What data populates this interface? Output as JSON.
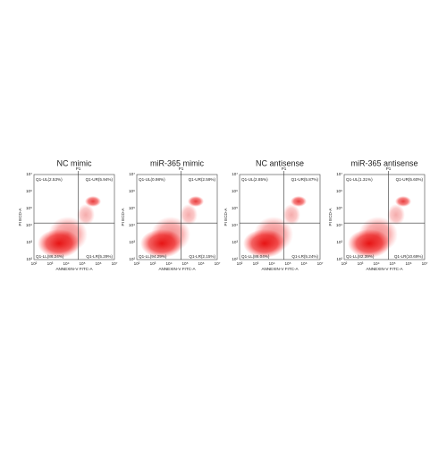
{
  "axes": {
    "x_label": "ANNEXIN-V FITC-A",
    "y_label": "PI ECD-A",
    "x_ticks": [
      "10²",
      "10³",
      "10⁴",
      "10⁵",
      "10⁶",
      "10⁷"
    ],
    "y_ticks": [
      "10²",
      "10³",
      "10⁴",
      "10⁵",
      "10⁶",
      "10⁷"
    ]
  },
  "panels": [
    {
      "title": "NC mimic",
      "gate": "P1",
      "ul": "Q1-UL(2.53%)",
      "ur": "Q1-UR(5.94%)",
      "ll": "Q1-LL(86.24%)",
      "lr": "Q1-LR(5.29%)"
    },
    {
      "title": "miR-365 mimic",
      "gate": "P1",
      "ul": "Q1-UL(0.98%)",
      "ur": "Q1-UR(2.59%)",
      "ll": "Q1-LL(94.29%)",
      "lr": "Q1-LR(2.15%)"
    },
    {
      "title": "NC antisense",
      "gate": "P1",
      "ul": "Q1-UL(2.85%)",
      "ur": "Q1-UR(5.87%)",
      "ll": "Q1-LL(86.04%)",
      "lr": "Q1-LR(5.24%)"
    },
    {
      "title": "miR-365 antisense",
      "gate": "P1",
      "ul": "Q1-UL(1.31%)",
      "ur": "Q1-UR(5.60%)",
      "ll": "Q1-LL(82.39%)",
      "lr": "Q1-LR(10.69%)"
    }
  ]
}
